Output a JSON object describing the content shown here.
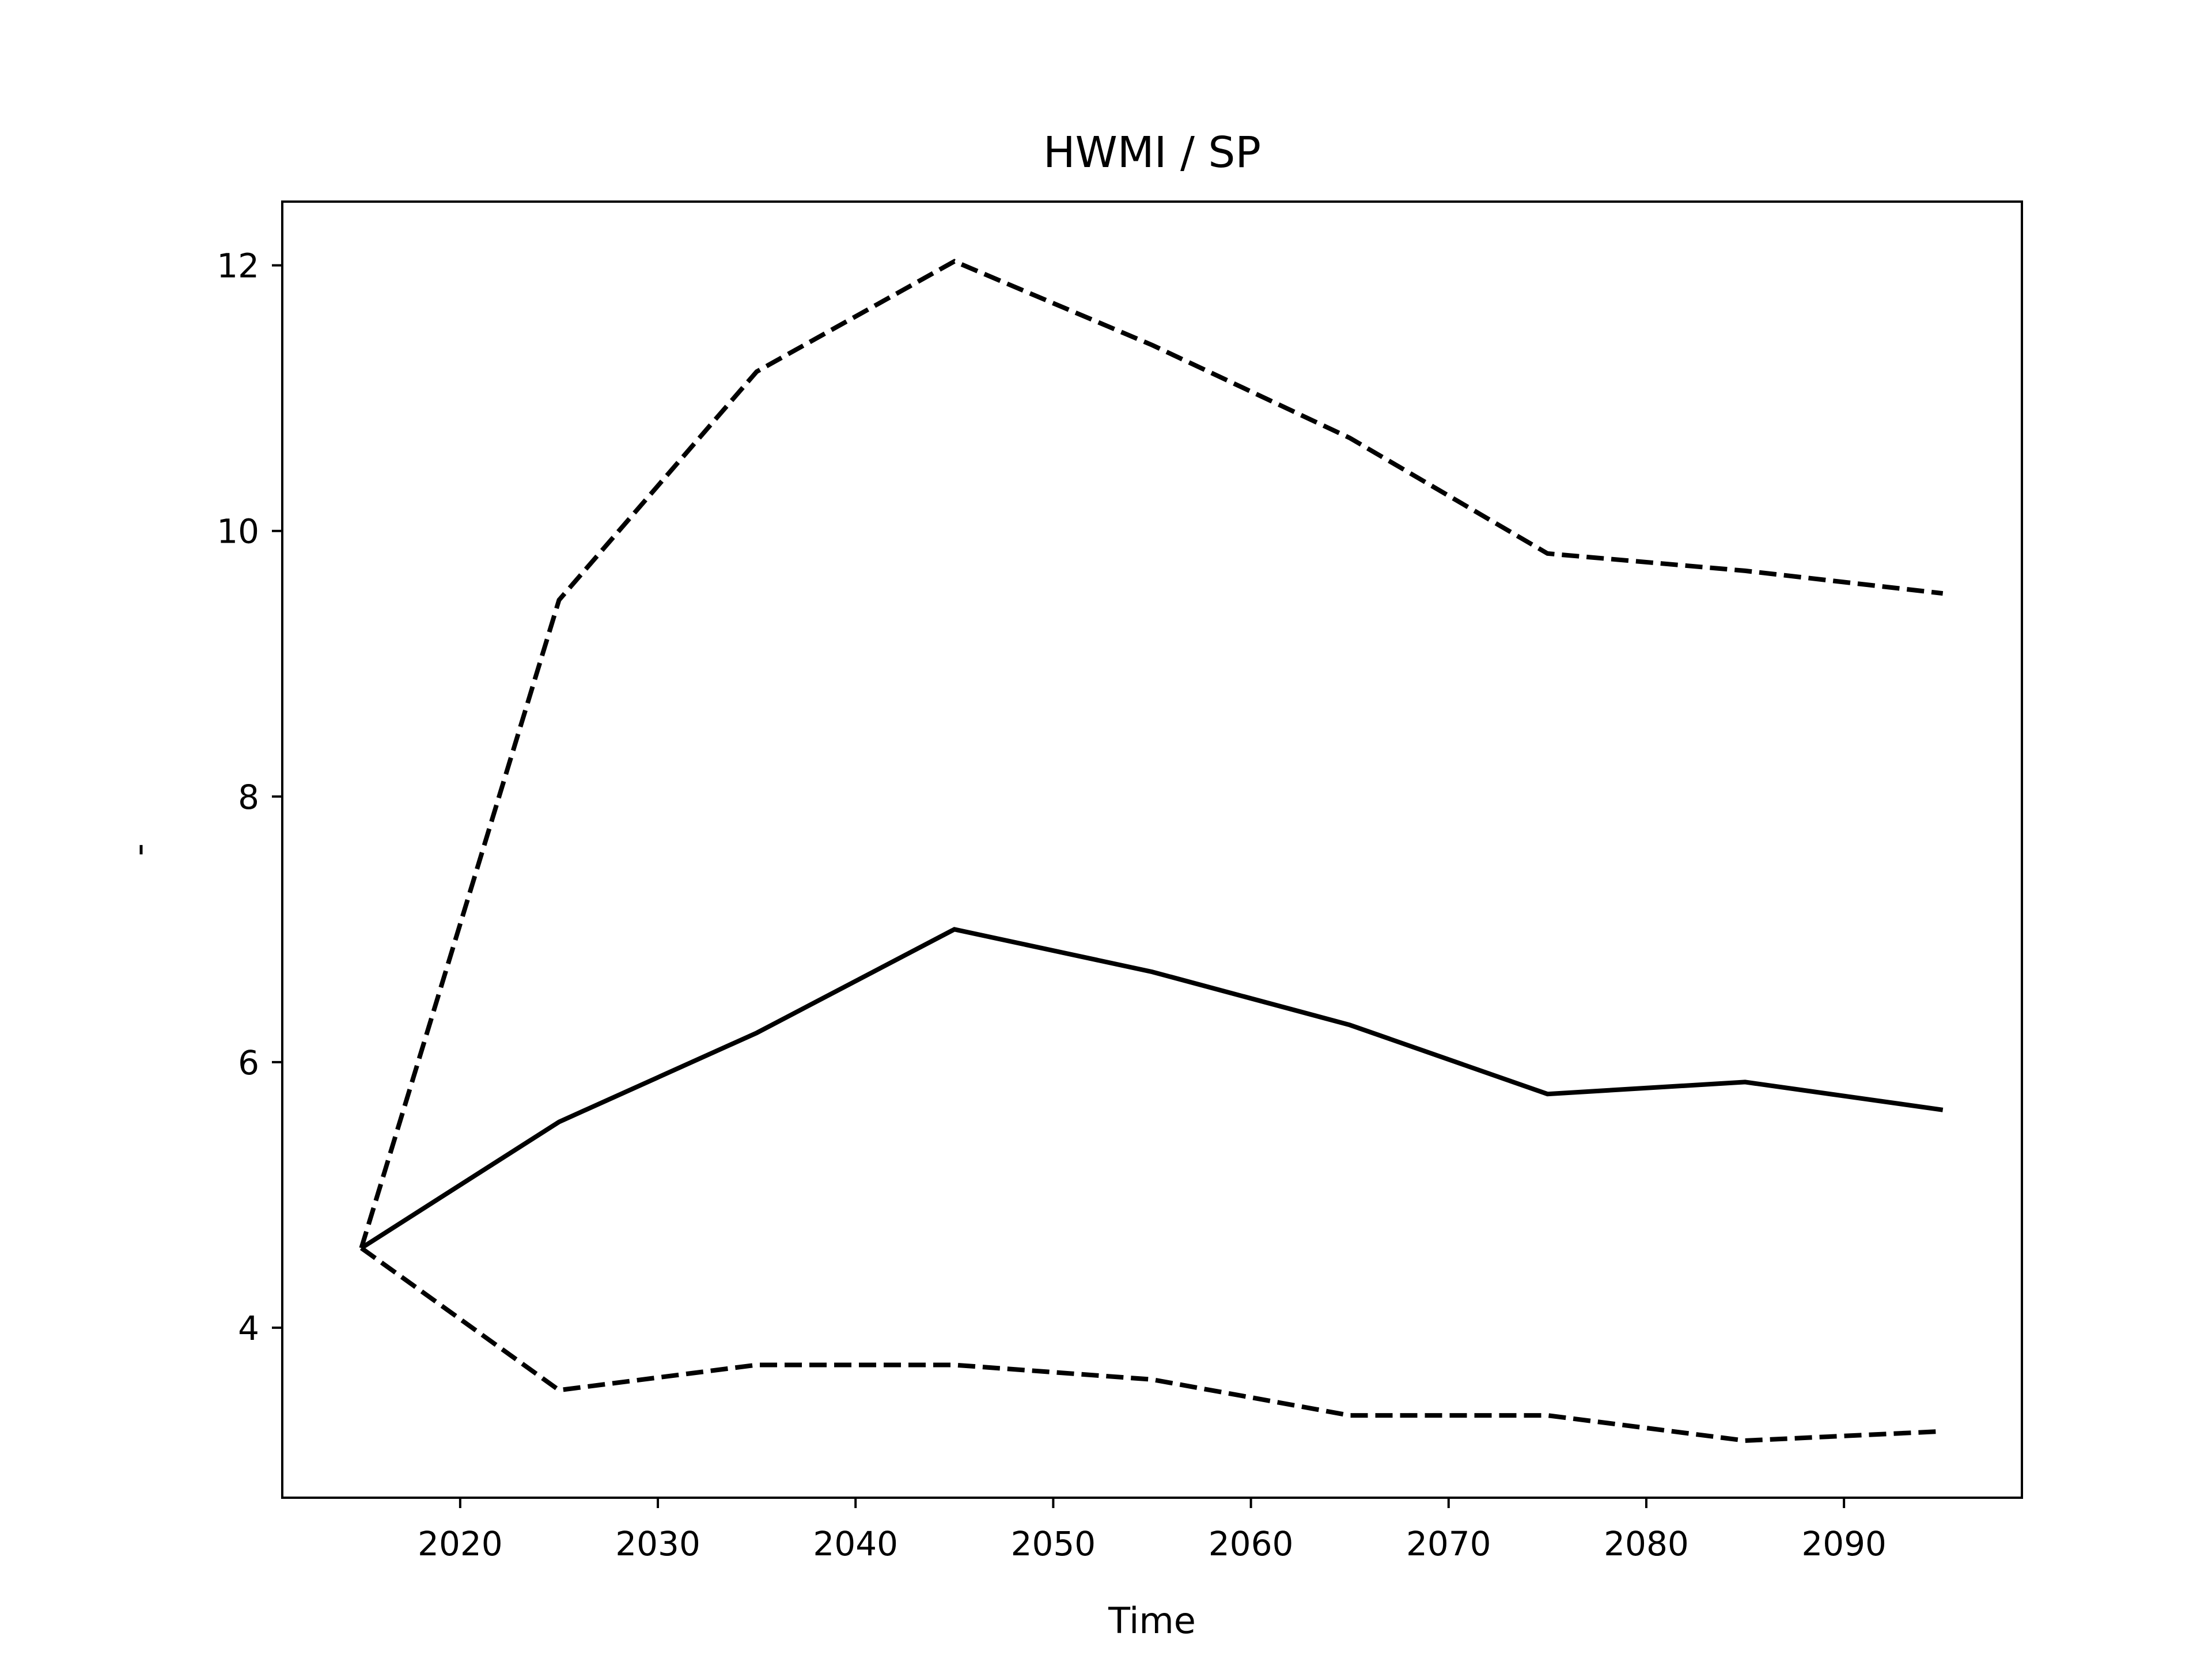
{
  "chart_data": {
    "type": "line",
    "title": "HWMI / SP",
    "xlabel": "Time",
    "ylabel": "-",
    "x": [
      2015,
      2025,
      2035,
      2045,
      2055,
      2065,
      2075,
      2085,
      2095
    ],
    "series": [
      {
        "values": [
          4.6,
          5.55,
          6.22,
          7.0,
          6.68,
          6.28,
          5.76,
          5.85,
          5.64
        ],
        "style": "solid",
        "color": "#000000"
      },
      {
        "values": [
          4.6,
          9.48,
          11.2,
          12.03,
          11.4,
          10.7,
          9.83,
          9.7,
          9.53
        ],
        "style": "dashed",
        "color": "#000000"
      },
      {
        "values": [
          4.6,
          3.53,
          3.72,
          3.72,
          3.61,
          3.34,
          3.34,
          3.15,
          3.22
        ],
        "style": "dashed",
        "color": "#000000"
      }
    ],
    "xticks": [
      2020,
      2030,
      2040,
      2050,
      2060,
      2070,
      2080,
      2090
    ],
    "yticks": [
      4,
      6,
      8,
      10,
      12
    ],
    "xlim": [
      2011,
      2099
    ],
    "ylim": [
      2.72,
      12.48
    ],
    "grid": false,
    "legend": "none"
  }
}
